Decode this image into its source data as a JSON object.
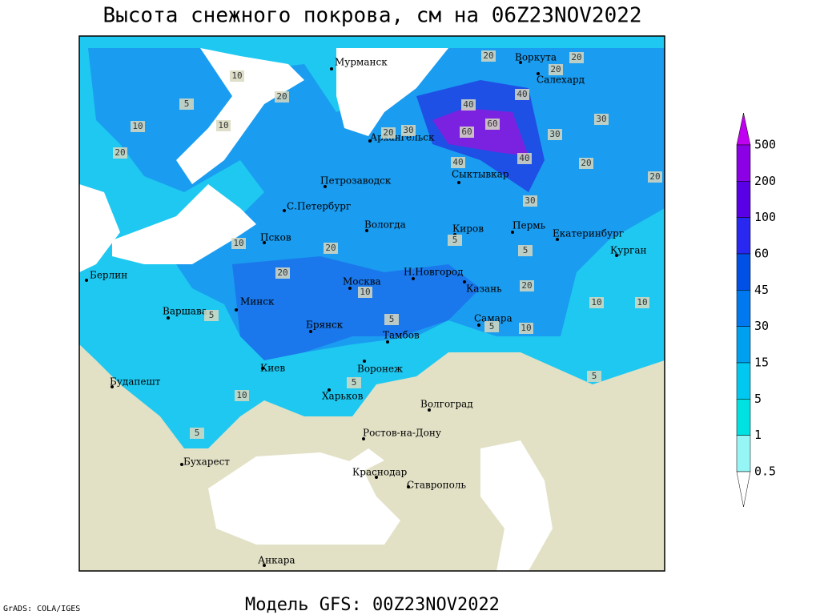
{
  "header": {
    "title": "Высота снежного покрова, см на 06Z23NOV2022"
  },
  "map": {
    "cities": [
      "Мурманск",
      "Воркута",
      "Салехард",
      "Архангельск",
      "Сыктывкар",
      "Петрозаводск",
      "С.Петербург",
      "Вологда",
      "Киров",
      "Пермь",
      "Екатеринбург",
      "Курган",
      "Псков",
      "Берлин",
      "Москва",
      "Н.Новгород",
      "Казань",
      "Минск",
      "Варшава",
      "Самара",
      "Брянск",
      "Тамбов",
      "Киев",
      "Воронеж",
      "Харьков",
      "Будапешт",
      "Волгоград",
      "Ростов-на-Дону",
      "Бухарест",
      "Краснодар",
      "Ставрополь",
      "Анкара"
    ],
    "contour_labels": [
      10,
      20,
      10,
      5,
      10,
      20,
      40,
      60,
      60,
      30,
      30,
      20,
      40,
      40,
      40,
      20,
      20,
      30,
      5,
      5,
      20,
      10,
      20,
      20,
      10,
      10,
      10,
      5,
      5,
      5,
      10,
      5,
      5,
      30,
      20,
      5,
      10,
      20,
      20
    ]
  },
  "legend": {
    "levels": [
      500,
      200,
      100,
      60,
      45,
      30,
      15,
      5,
      1,
      0.5
    ]
  },
  "footer": {
    "credit": "GrADS: COLA/IGES",
    "model": "Модель GFS: 00Z23NOV2022"
  }
}
